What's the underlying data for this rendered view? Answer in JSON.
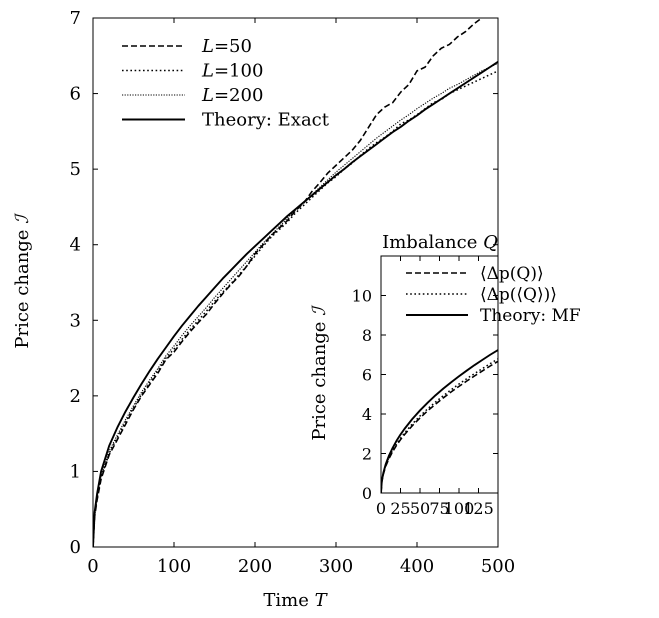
{
  "chart_data": [
    {
      "type": "line",
      "title": "",
      "xlabel": "Time T",
      "xlabel_var": "T",
      "ylabel": "Price change ℐ",
      "ylabel_var": "ℐ",
      "xlim": [
        0,
        500
      ],
      "ylim": [
        0,
        7
      ],
      "xticks": [
        0,
        100,
        200,
        300,
        400,
        500
      ],
      "yticks": [
        0,
        1,
        2,
        3,
        4,
        5,
        6,
        7
      ],
      "grid": false,
      "legend_position": "top-left",
      "series": [
        {
          "name": "L=50",
          "label_var": "L",
          "label_rest": "=50",
          "style": "dashed",
          "x": [
            0,
            2,
            5,
            10,
            20,
            30,
            40,
            50,
            60,
            70,
            80,
            90,
            100,
            110,
            120,
            130,
            140,
            150,
            160,
            170,
            180,
            190,
            200,
            210,
            220,
            230,
            240,
            250,
            260,
            270,
            280,
            290,
            300,
            310,
            320,
            330,
            340,
            350,
            360,
            370,
            380,
            390,
            400,
            410,
            420,
            430,
            440,
            450,
            460,
            470,
            480,
            490,
            500
          ],
          "y": [
            0,
            0.4,
            0.62,
            0.9,
            1.22,
            1.42,
            1.62,
            1.82,
            2.0,
            2.15,
            2.3,
            2.48,
            2.58,
            2.72,
            2.85,
            2.97,
            3.08,
            3.22,
            3.35,
            3.47,
            3.58,
            3.72,
            3.88,
            4.0,
            4.12,
            4.22,
            4.32,
            4.45,
            4.55,
            4.7,
            4.82,
            4.95,
            5.05,
            5.15,
            5.25,
            5.38,
            5.55,
            5.72,
            5.82,
            5.88,
            6.02,
            6.12,
            6.3,
            6.35,
            6.5,
            6.6,
            6.65,
            6.75,
            6.82,
            6.92,
            7.0,
            7.08,
            7.12
          ]
        },
        {
          "name": "L=100",
          "label_var": "L",
          "label_rest": "=100",
          "style": "dotted",
          "x": [
            0,
            2,
            5,
            10,
            20,
            30,
            40,
            50,
            60,
            70,
            80,
            90,
            100,
            110,
            120,
            130,
            140,
            150,
            160,
            170,
            180,
            190,
            200,
            210,
            220,
            230,
            240,
            250,
            260,
            270,
            280,
            290,
            300,
            310,
            320,
            330,
            340,
            350,
            360,
            370,
            380,
            390,
            400,
            410,
            420,
            430,
            440,
            450,
            460,
            470,
            480,
            490,
            500
          ],
          "y": [
            0,
            0.42,
            0.64,
            0.92,
            1.24,
            1.45,
            1.65,
            1.84,
            2.02,
            2.18,
            2.33,
            2.5,
            2.62,
            2.75,
            2.88,
            3.0,
            3.12,
            3.25,
            3.37,
            3.48,
            3.6,
            3.72,
            3.85,
            3.98,
            4.1,
            4.2,
            4.3,
            4.42,
            4.52,
            4.62,
            4.72,
            4.82,
            4.9,
            5.0,
            5.08,
            5.18,
            5.27,
            5.35,
            5.42,
            5.5,
            5.6,
            5.65,
            5.72,
            5.8,
            5.88,
            5.92,
            6.0,
            6.05,
            6.1,
            6.15,
            6.2,
            6.25,
            6.3
          ]
        },
        {
          "name": "L=200",
          "label_var": "L",
          "label_rest": "=200",
          "style": "densely-dotted",
          "x": [
            0,
            2,
            5,
            10,
            20,
            30,
            40,
            50,
            60,
            70,
            80,
            90,
            100,
            110,
            120,
            130,
            140,
            150,
            160,
            170,
            180,
            190,
            200,
            210,
            220,
            230,
            240,
            250,
            260,
            270,
            280,
            290,
            300,
            310,
            320,
            330,
            340,
            350,
            360,
            370,
            380,
            390,
            400,
            410,
            420,
            430,
            440,
            450,
            460,
            470,
            480,
            490,
            500
          ],
          "y": [
            0,
            0.44,
            0.66,
            0.94,
            1.27,
            1.48,
            1.68,
            1.87,
            2.05,
            2.21,
            2.36,
            2.53,
            2.66,
            2.8,
            2.93,
            3.05,
            3.17,
            3.3,
            3.42,
            3.54,
            3.66,
            3.78,
            3.9,
            4.02,
            4.13,
            4.24,
            4.35,
            4.46,
            4.56,
            4.66,
            4.76,
            4.86,
            4.96,
            5.05,
            5.14,
            5.23,
            5.32,
            5.41,
            5.49,
            5.57,
            5.65,
            5.72,
            5.8,
            5.87,
            5.94,
            6.0,
            6.07,
            6.12,
            6.18,
            6.24,
            6.3,
            6.35,
            6.4
          ]
        },
        {
          "name": "Theory: Exact",
          "label_var": "",
          "label_rest": "Theory:  Exact",
          "style": "solid",
          "x": [
            0,
            2,
            5,
            10,
            20,
            30,
            40,
            50,
            60,
            70,
            80,
            90,
            100,
            110,
            120,
            130,
            140,
            150,
            160,
            170,
            180,
            190,
            200,
            210,
            220,
            230,
            240,
            250,
            260,
            270,
            280,
            290,
            300,
            310,
            320,
            330,
            340,
            350,
            360,
            370,
            380,
            390,
            400,
            410,
            420,
            430,
            440,
            450,
            460,
            470,
            480,
            490,
            500
          ],
          "y": [
            0,
            0.46,
            0.7,
            1.0,
            1.34,
            1.58,
            1.79,
            1.98,
            2.16,
            2.33,
            2.49,
            2.64,
            2.79,
            2.93,
            3.06,
            3.19,
            3.31,
            3.43,
            3.55,
            3.66,
            3.77,
            3.88,
            3.98,
            4.08,
            4.18,
            4.28,
            4.38,
            4.47,
            4.56,
            4.65,
            4.74,
            4.83,
            4.92,
            5.0,
            5.09,
            5.17,
            5.25,
            5.33,
            5.41,
            5.49,
            5.56,
            5.64,
            5.71,
            5.79,
            5.86,
            5.93,
            6.0,
            6.07,
            6.14,
            6.21,
            6.28,
            6.35,
            6.42
          ]
        }
      ]
    },
    {
      "type": "line",
      "title": "Imbalance Q",
      "title_text": "Imbalance ",
      "title_var": "Q",
      "xlabel": "",
      "ylabel": "Price change ℐ",
      "ylabel_var": "ℐ",
      "xlim": [
        0,
        150
      ],
      "ylim": [
        0,
        12
      ],
      "xticks": [
        0,
        25,
        50,
        75,
        100,
        125
      ],
      "yticks": [
        0,
        2,
        4,
        6,
        8,
        10
      ],
      "grid": false,
      "legend_position": "top-left",
      "series": [
        {
          "name": "⟨Δp(Q)⟩",
          "style": "dashed",
          "x": [
            0,
            1,
            3,
            6,
            10,
            15,
            20,
            25,
            30,
            40,
            50,
            60,
            70,
            80,
            90,
            100,
            110,
            120,
            130,
            140,
            150
          ],
          "y": [
            0,
            0.55,
            0.95,
            1.35,
            1.72,
            2.1,
            2.42,
            2.7,
            2.95,
            3.4,
            3.8,
            4.17,
            4.5,
            4.82,
            5.12,
            5.4,
            5.67,
            5.93,
            6.18,
            6.43,
            6.67
          ]
        },
        {
          "name": "⟨Δp(⟨Q⟩)⟩",
          "style": "dotted",
          "x": [
            0,
            1,
            3,
            6,
            10,
            15,
            20,
            25,
            30,
            40,
            50,
            60,
            70,
            80,
            90,
            100,
            110,
            120,
            130,
            140,
            150
          ],
          "y": [
            0,
            0.58,
            1.0,
            1.4,
            1.78,
            2.16,
            2.48,
            2.77,
            3.03,
            3.49,
            3.9,
            4.27,
            4.61,
            4.93,
            5.23,
            5.52,
            5.79,
            6.05,
            6.3,
            6.55,
            6.79
          ]
        },
        {
          "name": "Theory: MF",
          "style": "solid",
          "x": [
            0,
            1,
            3,
            6,
            10,
            15,
            20,
            25,
            30,
            40,
            50,
            60,
            70,
            80,
            90,
            100,
            110,
            120,
            130,
            140,
            150
          ],
          "y": [
            0,
            0.59,
            1.02,
            1.45,
            1.87,
            2.29,
            2.65,
            2.96,
            3.24,
            3.74,
            4.18,
            4.58,
            4.95,
            5.29,
            5.61,
            5.91,
            6.2,
            6.48,
            6.74,
            7.0,
            7.24
          ]
        }
      ]
    }
  ]
}
